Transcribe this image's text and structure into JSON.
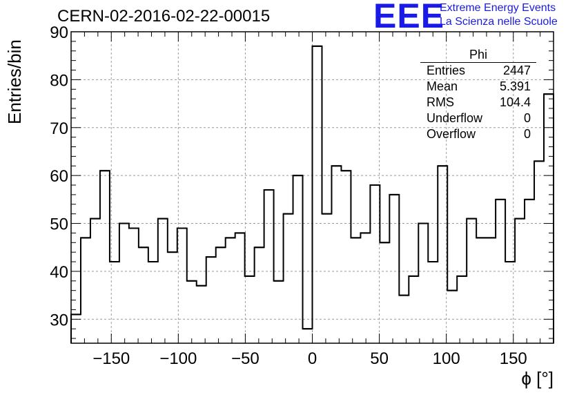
{
  "title": "CERN-02-2016-02-22-00015",
  "logo": {
    "mark": "EEE",
    "line1": "Extreme Energy Events",
    "line2": "La Scienza nelle Scuole",
    "color": "#1a1ae6"
  },
  "stats_box": {
    "title": "Phi",
    "rows": [
      {
        "label": "Entries",
        "value": "2447"
      },
      {
        "label": "Mean",
        "value": "5.391"
      },
      {
        "label": "RMS",
        "value": "104.4"
      },
      {
        "label": "Underflow",
        "value": "0"
      },
      {
        "label": "Overflow",
        "value": "0"
      }
    ]
  },
  "chart_data": {
    "type": "histogram",
    "title": "CERN-02-2016-02-22-00015",
    "xlabel": "ϕ [°]",
    "ylabel": "Entries/bin",
    "xlim": [
      -180,
      180
    ],
    "ylim": [
      25,
      90
    ],
    "bin_width": 7.2,
    "x_ticks": [
      -150,
      -100,
      -50,
      0,
      50,
      100,
      150
    ],
    "x_tick_labels": [
      "−150",
      "−100",
      "−50",
      "0",
      "50",
      "100",
      "150"
    ],
    "y_ticks": [
      30,
      40,
      50,
      60,
      70,
      80,
      90
    ],
    "grid": true,
    "line_color": "#000000",
    "values": [
      31,
      47,
      51,
      61,
      42,
      50,
      49,
      45,
      42,
      51,
      44,
      49,
      38,
      37,
      43,
      45,
      47,
      48,
      39,
      45,
      57,
      38,
      52,
      60,
      28,
      87,
      52,
      62,
      61,
      47,
      48,
      58,
      46,
      56,
      35,
      39,
      50,
      42,
      62,
      36,
      39,
      51,
      47,
      47,
      55,
      42,
      51,
      55,
      63,
      77
    ]
  }
}
